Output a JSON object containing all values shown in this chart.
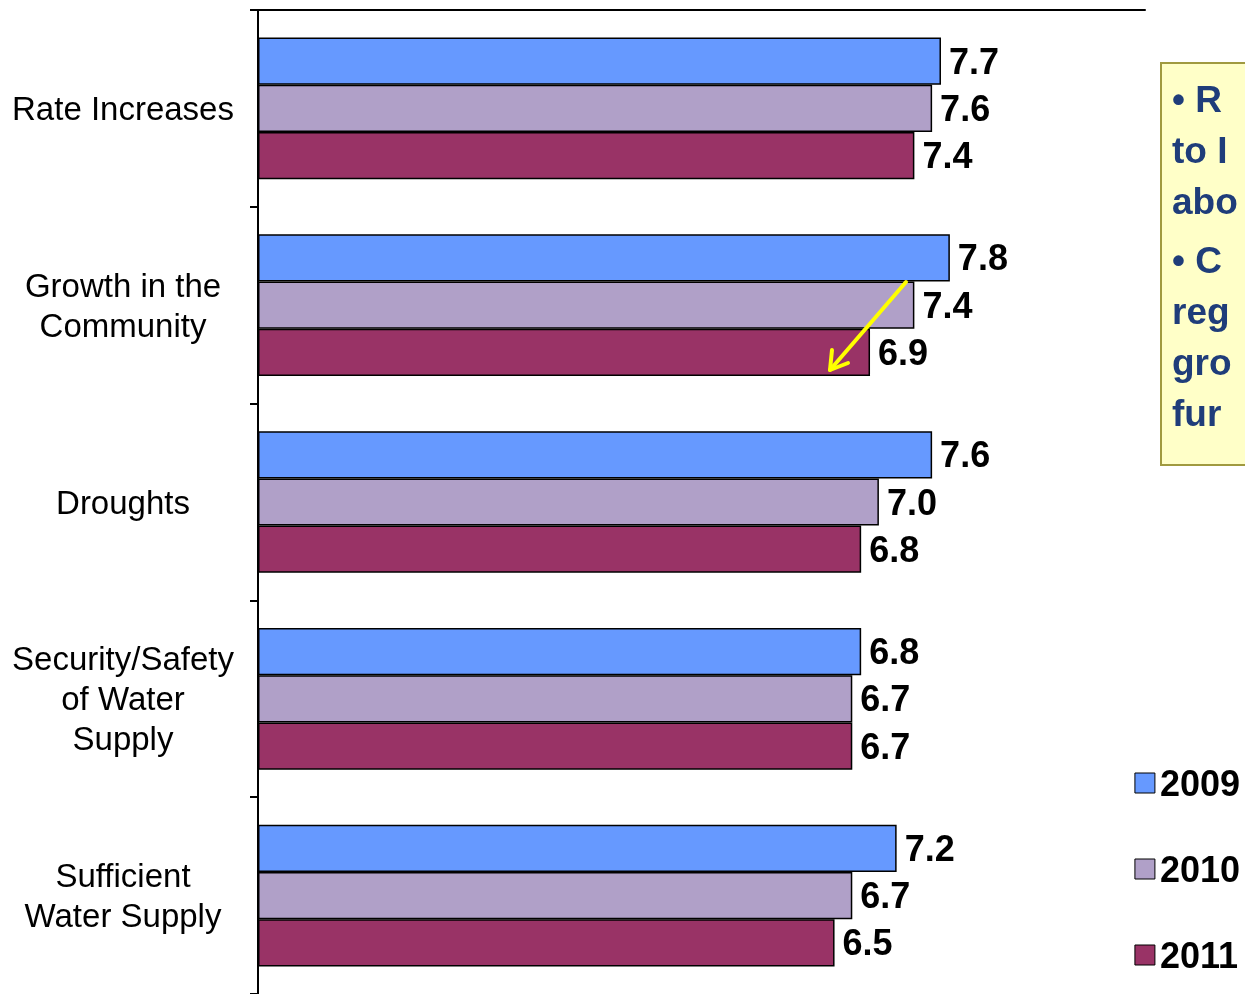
{
  "chart_data": {
    "type": "bar",
    "orientation": "horizontal",
    "categories": [
      "Rate Increases",
      "Growth in the\nCommunity",
      "Droughts",
      "Security/Safety\nof Water\nSupply",
      "Sufficient\nWater Supply"
    ],
    "series": [
      {
        "name": "2009",
        "color": "#6699ff",
        "values": [
          7.7,
          7.8,
          7.6,
          6.8,
          7.2
        ],
        "value_labels": [
          "7.7",
          "7.8",
          "7.6",
          "6.8",
          "7.2"
        ]
      },
      {
        "name": "2010",
        "color": "#b0a0c8",
        "values": [
          7.6,
          7.4,
          7.0,
          6.7,
          6.7
        ],
        "value_labels": [
          "7.6",
          "7.4",
          "7.0",
          "6.7",
          "6.7"
        ]
      },
      {
        "name": "2011",
        "color": "#993366",
        "values": [
          7.4,
          6.9,
          6.8,
          6.7,
          6.5
        ],
        "value_labels": [
          "7.4",
          "6.9",
          "6.8",
          "6.7",
          "6.5"
        ]
      }
    ],
    "xlim": [
      0,
      10
    ],
    "grid": false,
    "legend": "right",
    "annotations": [
      "• R\nto I\nabo",
      "• C\nreg\ngro\nfur"
    ]
  }
}
